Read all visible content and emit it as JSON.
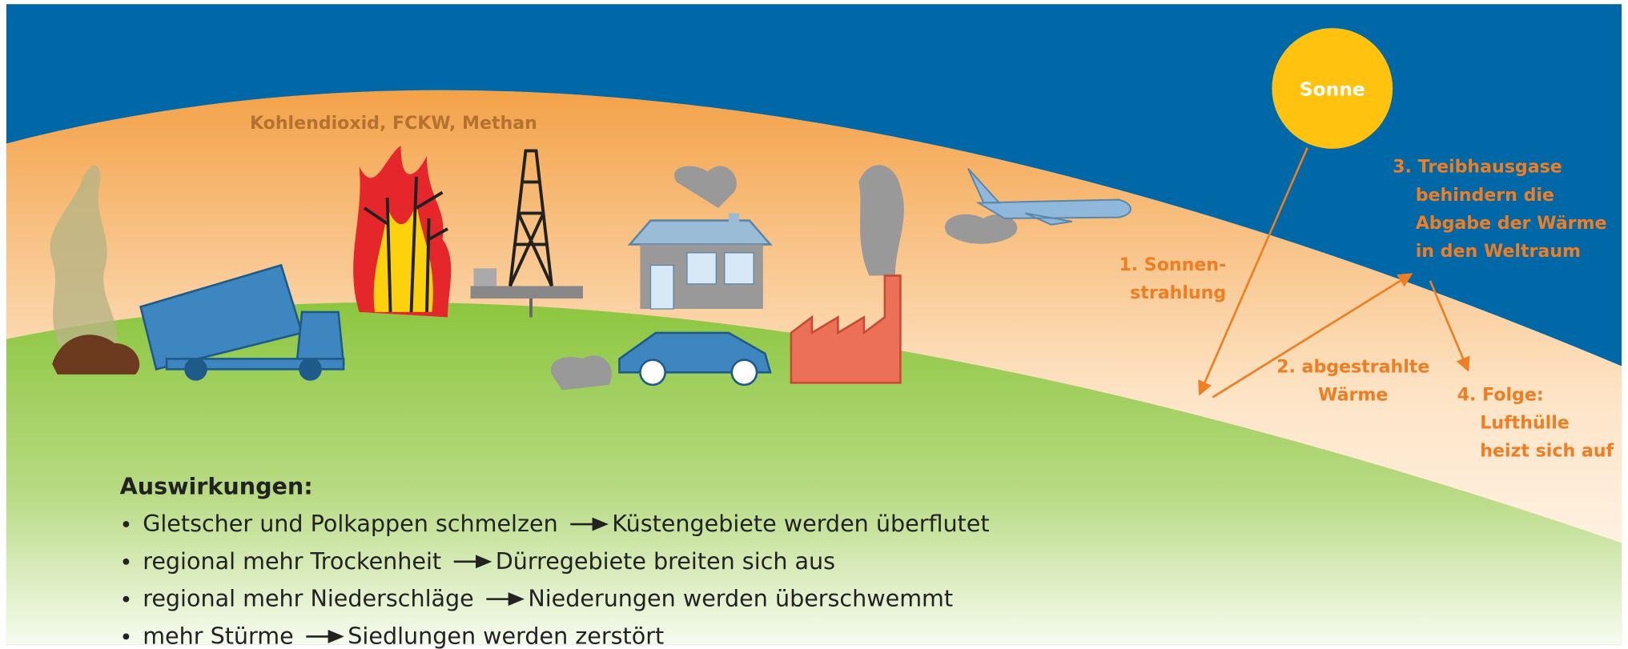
{
  "gas_label": "Kohlendioxid, FCKW, Methan",
  "sun_label": "Sonne",
  "steps": [
    {
      "lines": [
        "1. Sonnen-",
        "strahlung"
      ]
    },
    {
      "lines": [
        "2. abgestrahlte",
        "Wärme"
      ]
    },
    {
      "lines": [
        "3. Treibhausgase",
        "behindern die",
        "Abgabe der Wärme",
        "in den Weltraum"
      ]
    },
    {
      "lines": [
        "4. Folge:",
        "Lufthülle",
        "heizt sich auf"
      ]
    }
  ],
  "effects": {
    "title": "Auswirkungen:",
    "items": [
      {
        "cause": "Gletscher und Polkappen schmelzen",
        "result": "Küstengebiete werden überflutet"
      },
      {
        "cause": "regional mehr Trockenheit",
        "result": "Dürregebiete breiten sich aus"
      },
      {
        "cause": "regional mehr Niederschläge",
        "result": "Niederungen werden überschwemmt"
      },
      {
        "cause": "mehr Stürme",
        "result": "Siedlungen werden zerstört"
      }
    ]
  }
}
